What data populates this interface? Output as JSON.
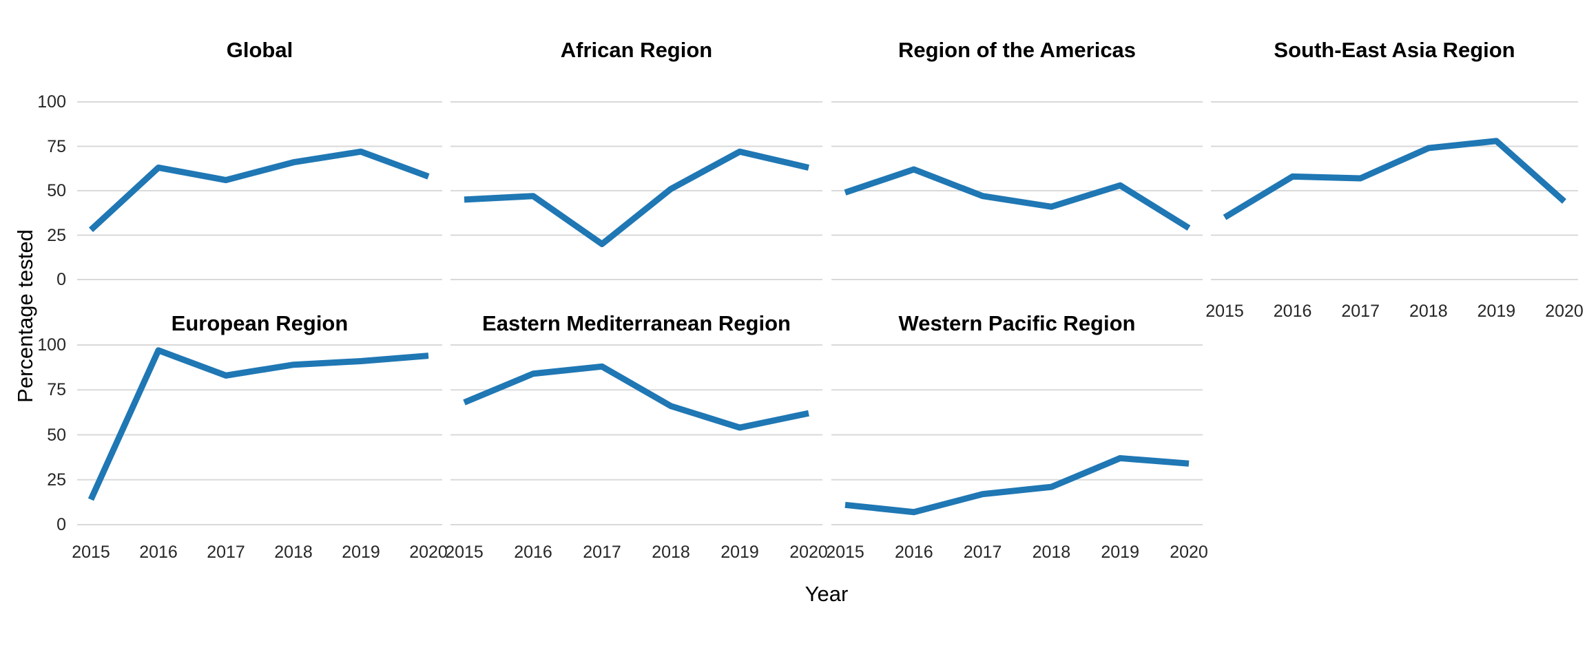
{
  "chart_data": {
    "type": "line",
    "title": "",
    "xlabel": "Year",
    "ylabel": "Percentage tested",
    "x": [
      2015,
      2016,
      2017,
      2018,
      2019,
      2020
    ],
    "ylim": [
      0,
      100
    ],
    "yticks": [
      0,
      25,
      50,
      75,
      100
    ],
    "grid": "horizontal-only",
    "legend": "none",
    "line_color": "#1f77b4",
    "grid_color": "#d9d9d9",
    "tick_text_color": "#262626",
    "title_text_color": "#000000",
    "facets": [
      {
        "title": "Global",
        "values": [
          28,
          63,
          56,
          66,
          72,
          58
        ]
      },
      {
        "title": "African Region",
        "values": [
          45,
          47,
          20,
          51,
          72,
          63
        ]
      },
      {
        "title": "Region of the Americas",
        "values": [
          49,
          62,
          47,
          41,
          53,
          29
        ]
      },
      {
        "title": "South-East Asia Region",
        "values": [
          35,
          58,
          57,
          74,
          78,
          44
        ]
      },
      {
        "title": "European Region",
        "values": [
          14,
          97,
          83,
          89,
          91,
          94
        ]
      },
      {
        "title": "Eastern Mediterranean Region",
        "values": [
          68,
          84,
          88,
          66,
          54,
          62
        ]
      },
      {
        "title": "Western Pacific Region",
        "values": [
          11,
          7,
          17,
          21,
          37,
          34
        ]
      }
    ]
  }
}
